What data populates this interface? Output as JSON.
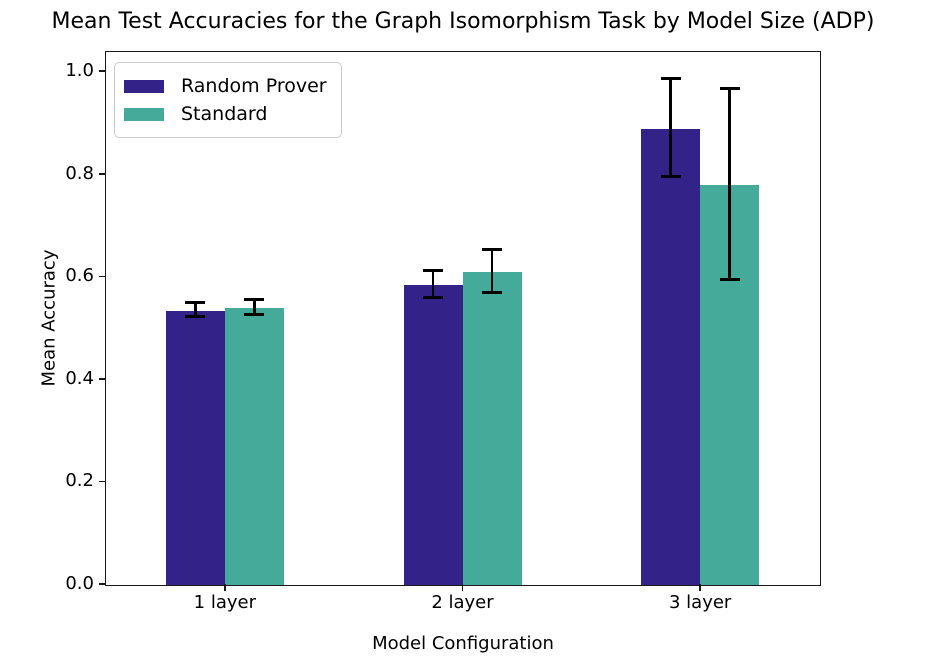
{
  "chart_data": {
    "type": "bar",
    "title": "Mean Test Accuracies for the Graph Isomorphism Task by Model Size (ADP)",
    "xlabel": "Model Configuration",
    "ylabel": "Mean Accuracy",
    "categories": [
      "1 layer",
      "2 layer",
      "3 layer"
    ],
    "series": [
      {
        "name": "Random Prover",
        "color": "#332288",
        "values": [
          0.535,
          0.585,
          0.89
        ],
        "errors": [
          0.014,
          0.027,
          0.095
        ]
      },
      {
        "name": "Standard",
        "color": "#44AA99",
        "values": [
          0.54,
          0.61,
          0.78
        ],
        "errors": [
          0.014,
          0.042,
          0.187
        ]
      }
    ],
    "ylim": [
      0,
      1.0375
    ],
    "yticks": [
      0.0,
      0.2,
      0.4,
      0.6,
      0.8,
      1.0
    ],
    "grid": false,
    "legend_position": "upper left",
    "error_bar_color": "#000000",
    "spine_color": "#1a1a1a"
  }
}
